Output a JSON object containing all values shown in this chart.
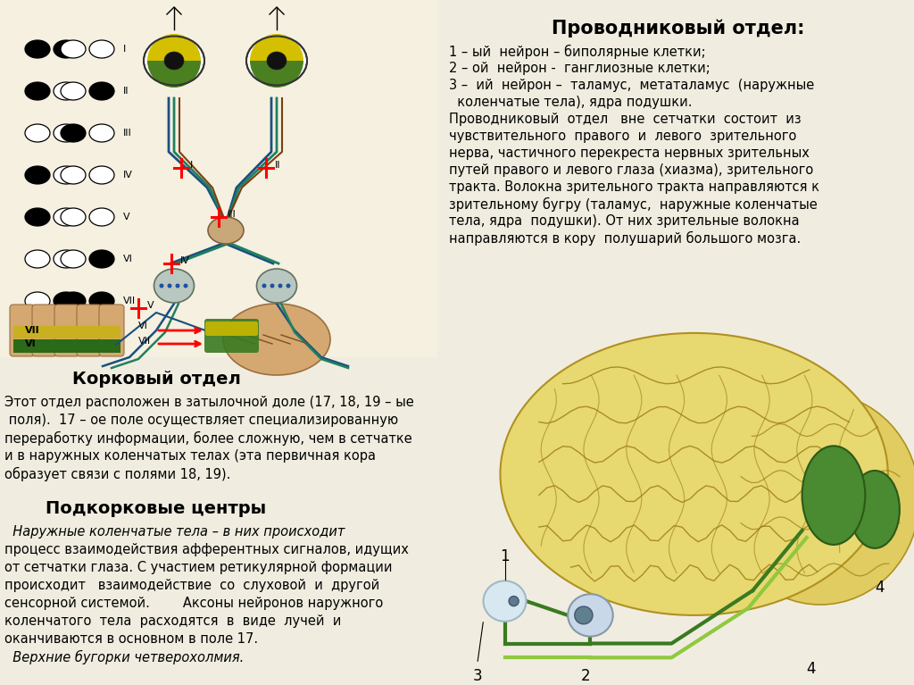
{
  "bg_color": "#f0ede0",
  "title_right": "Проводниковый отдел:",
  "text_right_lines": [
    "1 – ый  нейрон – биполярные клетки;",
    "2 – ой  нейрон -  ганглиозные клетки;",
    "3 –  ий  нейрон –  таламус,  метаталамус  (наружные",
    "  коленчатые тела), ядра подушки.",
    "Проводниковый  отдел   вне  сетчатки  состоит  из",
    "чувствительного  правого  и  левого  зрительного",
    "нерва, частичного перекреста нервных зрительных",
    "путей правого и левого глаза (хиазма), зрительного",
    "тракта. Волокна зрительного тракта направляются к",
    "зрительному бугру (таламус,  наружные коленчатые",
    "тела, ядра  подушки). От них зрительные волокна",
    "направляются в кору  полушарий большого мозга."
  ],
  "title_bottom_left": "Корковый отдел",
  "text_bottom_left": [
    "Этот отдел расположен в затылочной доле (17, 18, 19 – ые",
    " поля).  17 – ое поле осуществляет специализированную",
    "переработку информации, более сложную, чем в сетчатке",
    "и в наружных коленчатых телах (эта первичная кора",
    "образует связи с полями 18, 19)."
  ],
  "title_podkorkovye": "Подкорковые центры",
  "text_podkorkovye": [
    "  Наружные коленчатые тела – в них происходит",
    "процесс взаимодействия афферентных сигналов, идущих",
    "от сетчатки глаза. С участием ретикулярной формации",
    "происходит   взаимодействие  со  слуховой  и  другой",
    "сенсорной системой.        Аксоны нейронов наружного",
    "коленчатого  тела  расходятся  в  виде  лучей  и",
    "оканчиваются в основном в поле 17.",
    "  Верхние бугорки четверохолмия."
  ],
  "font_size_title": 14,
  "font_size_text": 10.5
}
